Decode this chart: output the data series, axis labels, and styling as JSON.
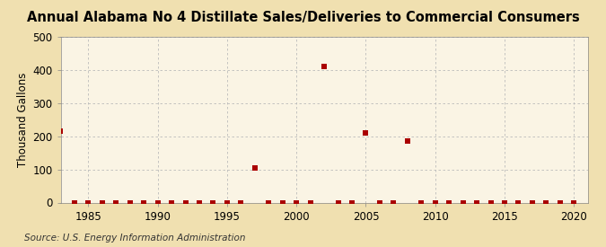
{
  "title": "Annual Alabama No 4 Distillate Sales/Deliveries to Commercial Consumers",
  "ylabel": "Thousand Gallons",
  "source": "Source: U.S. Energy Information Administration",
  "background_color": "#f0e0b0",
  "plot_background_color": "#faf4e4",
  "xlim": [
    1983,
    2021
  ],
  "ylim": [
    0,
    500
  ],
  "xticks": [
    1985,
    1990,
    1995,
    2000,
    2005,
    2010,
    2015,
    2020
  ],
  "yticks": [
    0,
    100,
    200,
    300,
    400,
    500
  ],
  "years": [
    1983,
    1984,
    1985,
    1986,
    1987,
    1988,
    1989,
    1990,
    1991,
    1992,
    1993,
    1994,
    1995,
    1996,
    1997,
    1998,
    1999,
    2000,
    2001,
    2002,
    2003,
    2004,
    2005,
    2006,
    2007,
    2008,
    2009,
    2010,
    2011,
    2012,
    2013,
    2014,
    2015,
    2016,
    2017,
    2018,
    2019,
    2020
  ],
  "values": [
    215,
    0,
    0,
    0,
    0,
    0,
    0,
    0,
    0,
    0,
    0,
    0,
    0,
    0,
    105,
    0,
    0,
    0,
    0,
    410,
    0,
    0,
    210,
    0,
    0,
    185,
    0,
    0,
    0,
    0,
    0,
    0,
    0,
    0,
    0,
    0,
    0,
    0
  ],
  "marker_color": "#aa0000",
  "marker_size": 16,
  "grid_color": "#bbbbbb",
  "title_fontsize": 10.5,
  "label_fontsize": 8.5,
  "tick_fontsize": 8.5,
  "source_fontsize": 7.5
}
